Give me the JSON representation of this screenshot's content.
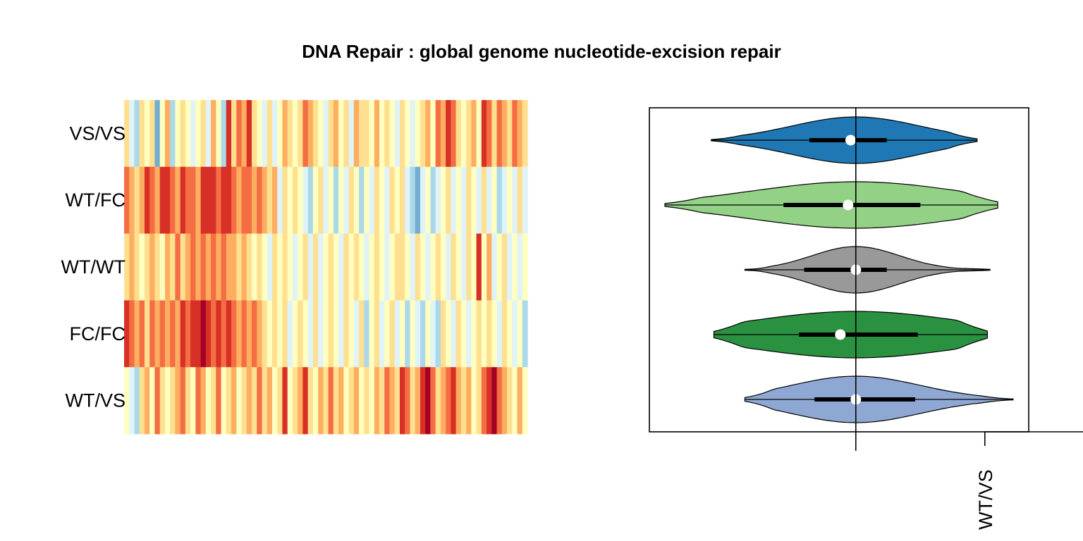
{
  "title": "DNA Repair : global genome nucleotide-excision repair",
  "chart_data": [
    {
      "type": "heatmap",
      "rows": [
        "VS/VS",
        "WT/FC",
        "WT/WT",
        "FC/FC",
        "WT/VS"
      ],
      "palette": [
        "#313695",
        "#4575b4",
        "#74add1",
        "#abd9e9",
        "#e0f3f8",
        "#ffffbf",
        "#fee090",
        "#fdae61",
        "#f46d43",
        "#d73027",
        "#a50026"
      ],
      "values": [
        [
          6,
          4,
          3,
          6,
          5,
          6,
          2,
          5,
          7,
          3,
          5,
          6,
          5,
          4,
          5,
          6,
          4,
          7,
          5,
          3,
          9,
          6,
          8,
          7,
          9,
          6,
          5,
          4,
          6,
          4,
          5,
          7,
          6,
          5,
          6,
          8,
          7,
          6,
          5,
          4,
          6,
          7,
          5,
          6,
          4,
          7,
          6,
          6,
          5,
          7,
          5,
          6,
          5,
          4,
          6,
          5,
          4,
          5,
          6,
          7,
          5,
          8,
          7,
          9,
          8,
          6,
          5,
          6,
          7,
          5,
          9,
          8,
          6,
          8,
          7,
          6,
          8,
          7,
          6
        ],
        [
          8,
          7,
          6,
          7,
          9,
          8,
          7,
          9,
          9,
          8,
          7,
          9,
          8,
          8,
          7,
          9,
          9,
          9,
          8,
          9,
          9,
          8,
          7,
          8,
          8,
          7,
          8,
          7,
          6,
          7,
          4,
          6,
          5,
          6,
          5,
          4,
          3,
          5,
          6,
          4,
          5,
          3,
          5,
          4,
          6,
          5,
          3,
          5,
          4,
          6,
          5,
          4,
          6,
          5,
          6,
          4,
          3,
          2,
          4,
          5,
          3,
          4,
          5,
          6,
          4,
          5,
          4,
          6,
          5,
          4,
          6,
          4,
          5,
          3,
          4,
          5,
          4,
          6,
          4
        ],
        [
          6,
          7,
          6,
          5,
          6,
          7,
          6,
          5,
          7,
          6,
          8,
          6,
          7,
          8,
          7,
          8,
          7,
          8,
          7,
          8,
          7,
          7,
          6,
          7,
          6,
          5,
          6,
          5,
          4,
          6,
          5,
          6,
          5,
          4,
          5,
          6,
          4,
          6,
          4,
          5,
          6,
          5,
          4,
          6,
          5,
          6,
          5,
          4,
          5,
          6,
          5,
          4,
          5,
          6,
          6,
          5,
          4,
          6,
          5,
          4,
          5,
          6,
          5,
          4,
          6,
          5,
          4,
          6,
          5,
          9,
          5,
          7,
          4,
          5,
          6,
          4,
          5,
          4,
          5
        ],
        [
          9,
          8,
          7,
          8,
          6,
          8,
          7,
          8,
          7,
          8,
          7,
          9,
          8,
          9,
          9,
          10,
          9,
          8,
          9,
          8,
          9,
          8,
          7,
          8,
          7,
          8,
          7,
          6,
          5,
          6,
          5,
          6,
          4,
          5,
          6,
          5,
          4,
          6,
          4,
          5,
          6,
          5,
          4,
          6,
          5,
          4,
          6,
          3,
          5,
          6,
          4,
          5,
          6,
          4,
          5,
          3,
          5,
          4,
          3,
          5,
          4,
          3,
          6,
          5,
          4,
          6,
          5,
          4,
          5,
          6,
          5,
          6,
          5,
          4,
          6,
          5,
          4,
          5,
          3
        ],
        [
          5,
          4,
          3,
          6,
          7,
          5,
          8,
          6,
          5,
          6,
          7,
          8,
          6,
          5,
          8,
          7,
          5,
          6,
          8,
          5,
          6,
          7,
          5,
          6,
          7,
          6,
          8,
          6,
          7,
          5,
          6,
          9,
          5,
          6,
          7,
          9,
          6,
          5,
          7,
          6,
          8,
          6,
          7,
          5,
          6,
          7,
          5,
          6,
          5,
          7,
          6,
          8,
          7,
          6,
          9,
          8,
          6,
          7,
          9,
          10,
          8,
          6,
          7,
          8,
          9,
          7,
          6,
          7,
          5,
          6,
          8,
          9,
          10,
          8,
          7,
          6,
          5,
          7,
          5
        ]
      ]
    },
    {
      "type": "violin",
      "groups": [
        "VS/VS",
        "WT/FC",
        "WT/WT",
        "FC/FC",
        "WT/VS"
      ],
      "colors": [
        "#1f78b4",
        "#93d186",
        "#999999",
        "#2a9141",
        "#8fa8d3"
      ],
      "violins": [
        {
          "min": -0.56,
          "max": 0.47,
          "q1": -0.18,
          "q3": 0.12,
          "median": -0.02,
          "peak": 0.0,
          "spread": 0.25
        },
        {
          "min": -0.74,
          "max": 0.55,
          "q1": -0.28,
          "q3": 0.25,
          "median": -0.03,
          "peak": 0.0,
          "spread": 0.4
        },
        {
          "min": -0.43,
          "max": 0.52,
          "q1": -0.2,
          "q3": 0.12,
          "median": 0.0,
          "peak": 0.0,
          "spread": 0.17
        },
        {
          "min": -0.55,
          "max": 0.51,
          "q1": -0.22,
          "q3": 0.24,
          "median": -0.06,
          "peak": 0.0,
          "spread": 0.4
        },
        {
          "min": -0.43,
          "max": 0.61,
          "q1": -0.16,
          "q3": 0.23,
          "median": 0.0,
          "peak": 0.0,
          "spread": 0.25
        }
      ],
      "xlim": [
        -0.8,
        0.67
      ],
      "refline_x": 0,
      "tick_x": 0.5,
      "tick_label": "WT/VS"
    }
  ]
}
